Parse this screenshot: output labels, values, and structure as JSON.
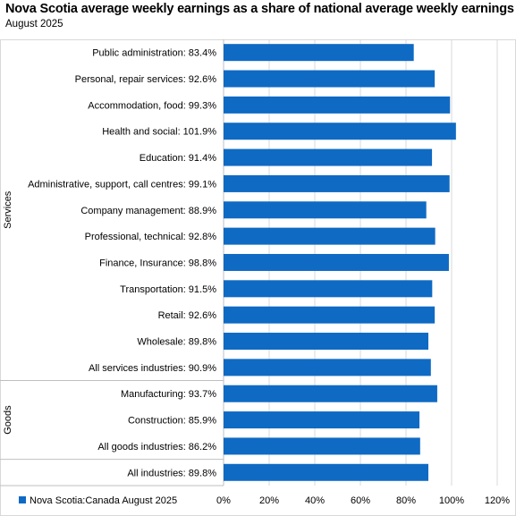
{
  "title": "Nova Scotia average weekly earnings as a share of national average weekly earnings",
  "subtitle": "August 2025",
  "chart_data": {
    "type": "bar",
    "orientation": "horizontal",
    "categories": [
      "Public administration",
      "Personal, repair services",
      "Accommodation, food",
      "Health and social",
      "Education",
      "Administrative, support, call centres",
      "Company management",
      "Professional, technical",
      "Finance, Insurance",
      "Transportation",
      "Retail",
      "Wholesale",
      "All services industries",
      "Manufacturing",
      "Construction",
      "All goods industries",
      "All industries"
    ],
    "category_labels": [
      "Public administration:  83.4%",
      "Personal, repair services:  92.6%",
      "Accommodation, food:  99.3%",
      "Health and social:  101.9%",
      "Education:  91.4%",
      "Administrative, support, call centres:  99.1%",
      "Company management:  88.9%",
      "Professional, technical:  92.8%",
      "Finance, Insurance:  98.8%",
      "Transportation:  91.5%",
      "Retail:  92.6%",
      "Wholesale:  89.8%",
      "All services industries:  90.9%",
      "Manufacturing:  93.7%",
      "Construction:  85.9%",
      "All goods industries:  86.2%",
      "All industries:  89.8%"
    ],
    "values": [
      83.4,
      92.6,
      99.3,
      101.9,
      91.4,
      99.1,
      88.9,
      92.8,
      98.8,
      91.5,
      92.6,
      89.8,
      90.9,
      93.7,
      85.9,
      86.2,
      89.8
    ],
    "groups": [
      {
        "name": "Services",
        "start": 0,
        "end": 12
      },
      {
        "name": "Goods",
        "start": 13,
        "end": 15
      },
      {
        "name": "",
        "start": 16,
        "end": 16
      }
    ],
    "series": [
      {
        "name": "Nova Scotia:Canada August 2025"
      }
    ],
    "xlim": [
      0,
      120
    ],
    "xticks": [
      0,
      20,
      40,
      60,
      80,
      100,
      120
    ],
    "xtick_labels": [
      "0%",
      "20%",
      "40%",
      "60%",
      "80%",
      "100%",
      "120%"
    ],
    "grid": true,
    "legend": "bottom-left",
    "bar_color": "#0F6AC4",
    "grid_color": "#D9D9D9"
  }
}
